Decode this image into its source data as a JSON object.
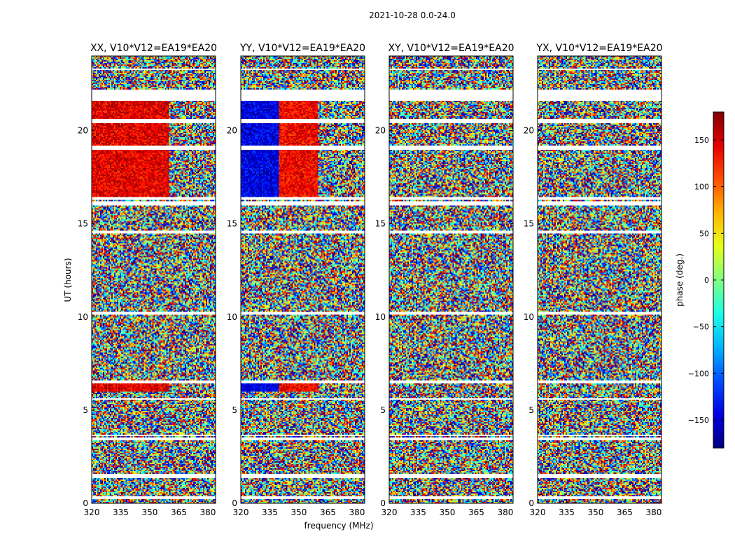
{
  "figure": {
    "suptitle": "2021-10-28 0.0-24.0"
  },
  "chart_data": {
    "type": "heatmap",
    "title": "2021-10-28 0.0-24.0",
    "xlabel": "frequency (MHz)",
    "ylabel": "UT (hours)",
    "xlim": [
      320,
      384
    ],
    "ylim": [
      0,
      24
    ],
    "x_ticks": [
      320,
      335,
      350,
      365,
      380
    ],
    "y_ticks": [
      0,
      5,
      10,
      15,
      20
    ],
    "panels": [
      {
        "title": "XX, V10*V12=EA19*EA20",
        "correlation": "XX",
        "ylabel": "UT (hours)"
      },
      {
        "title": "YY, V10*V12=EA19*EA20",
        "correlation": "YY",
        "xlabel": "frequency (MHz)"
      },
      {
        "title": "XY, V10*V12=EA19*EA20",
        "correlation": "XY"
      },
      {
        "title": "YX, V10*V12=EA19*EA20",
        "correlation": "YX"
      }
    ],
    "flagged_gaps_hours": [
      [
        0.25,
        0.35
      ],
      [
        1.35,
        1.55
      ],
      [
        3.4,
        3.5
      ],
      [
        3.6,
        3.65
      ],
      [
        5.55,
        5.65
      ],
      [
        6.45,
        6.6
      ],
      [
        10.15,
        10.25
      ],
      [
        14.45,
        14.6
      ],
      [
        16.3,
        16.4
      ],
      [
        16.0,
        16.2
      ],
      [
        19.0,
        19.2
      ],
      [
        20.4,
        20.6
      ],
      [
        21.6,
        22.2
      ],
      [
        22.4,
        22.45
      ],
      [
        23.25,
        23.3
      ],
      [
        23.45,
        23.5
      ]
    ],
    "colorbar": {
      "label": "phase (deg.)",
      "range": [
        -180,
        180
      ],
      "ticks": [
        -150,
        -100,
        -50,
        0,
        50,
        100,
        150
      ],
      "colormap": "jet",
      "colors": [
        "#00007f",
        "#0000ff",
        "#007fff",
        "#00ffff",
        "#7fff7f",
        "#ffff00",
        "#ff7f00",
        "#ff0000",
        "#7f0000"
      ]
    }
  }
}
